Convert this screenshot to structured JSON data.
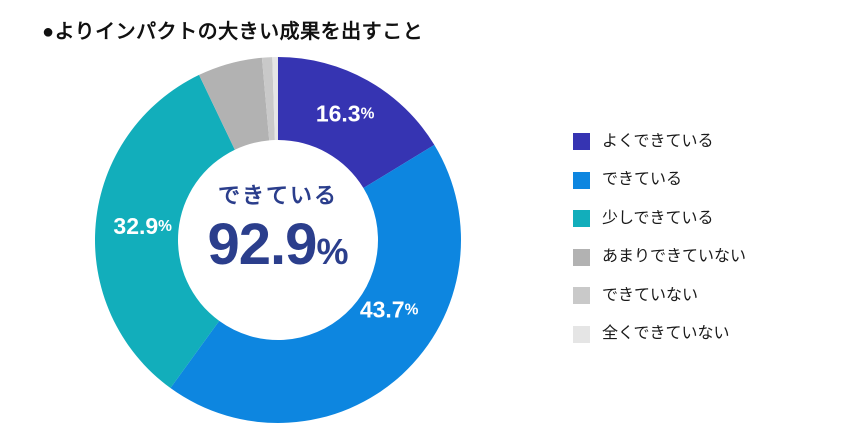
{
  "title": "●よりインパクトの大きい成果を出すこと",
  "center": {
    "label": "できている",
    "value": "92.9",
    "unit": "%"
  },
  "colors": {
    "center_text": "#2b3e8c",
    "title_text": "#111111",
    "legend_text": "#1a1a1a",
    "slice_label_text": "#ffffff",
    "background": "#ffffff"
  },
  "chart_data": {
    "type": "pie",
    "donut": true,
    "title": "よりインパクトの大きい成果を出すこと",
    "start_angle_deg": 0,
    "direction": "clockwise",
    "inner_radius_ratio": 0.55,
    "legend_position": "right",
    "center_label": "できている 92.9%",
    "segments": [
      {
        "label": "よくできている",
        "value": 16.3,
        "display": "16.3",
        "color": "#3634b2",
        "show_label": true
      },
      {
        "label": "できている",
        "value": 43.7,
        "display": "43.7",
        "color": "#0d86e0",
        "show_label": true
      },
      {
        "label": "少しできている",
        "value": 32.9,
        "display": "32.9",
        "color": "#12aebb",
        "show_label": true
      },
      {
        "label": "あまりできていない",
        "value": 5.7,
        "display": "",
        "color": "#b2b2b2",
        "show_label": false
      },
      {
        "label": "できていない",
        "value": 0.9,
        "display": "",
        "color": "#c9c9c9",
        "show_label": false
      },
      {
        "label": "全くできていない",
        "value": 0.5,
        "display": "",
        "color": "#e5e5e5",
        "show_label": false
      }
    ]
  }
}
